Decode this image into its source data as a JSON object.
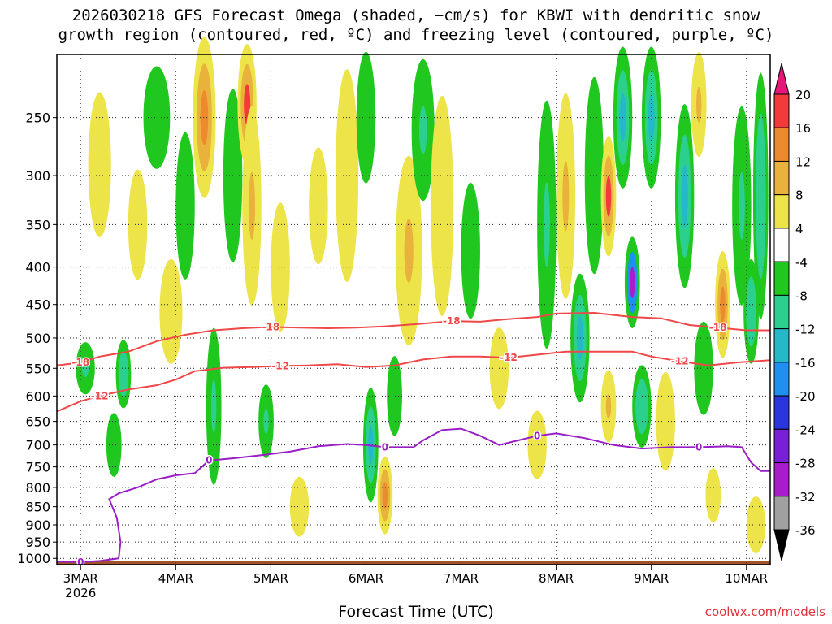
{
  "chart_data": {
    "type": "heatmap",
    "title_line1": "2026030218 GFS Forecast Omega (shaded, −cm/s) for KBWI with dendritic snow",
    "title_line2": "growth region (contoured, red, ºC) and freezing level (contoured, purple, ºC)",
    "xlabel": "Forecast Time (UTC)",
    "ylabel": "",
    "y_scale": "pressure (log), inverted",
    "ylim": [
      1020,
      205
    ],
    "y_ticks": [
      250,
      300,
      350,
      400,
      450,
      500,
      550,
      600,
      650,
      700,
      750,
      800,
      850,
      900,
      950,
      1000
    ],
    "x_ticks": [
      {
        "label": "3MAR",
        "day": 3
      },
      {
        "label": "4MAR",
        "day": 4
      },
      {
        "label": "5MAR",
        "day": 5
      },
      {
        "label": "6MAR",
        "day": 6
      },
      {
        "label": "7MAR",
        "day": 7
      },
      {
        "label": "8MAR",
        "day": 8
      },
      {
        "label": "9MAR",
        "day": 9
      },
      {
        "label": "10MAR",
        "day": 10
      }
    ],
    "x_year_label": "2026",
    "xlim_day": [
      2.75,
      10.25
    ],
    "grid": true,
    "colorbar": {
      "levels": [
        20,
        16,
        12,
        8,
        4,
        -4,
        -8,
        -12,
        -16,
        -20,
        -24,
        -28,
        -32,
        -36
      ],
      "colors": [
        "#e8157a",
        "#f23a3a",
        "#ee8a2e",
        "#e9b23c",
        "#ede44a",
        "#ffffff",
        "#1fc71f",
        "#2bd08e",
        "#24b8c8",
        "#1f8ff0",
        "#2a35e0",
        "#7a1fd8",
        "#a91cc9",
        "#a0a0a0",
        "#000000"
      ]
    },
    "dendritic_contours": [
      {
        "label": "-18",
        "points": [
          [
            2.75,
            545
          ],
          [
            3.0,
            540
          ],
          [
            3.2,
            530
          ],
          [
            3.5,
            522
          ],
          [
            3.8,
            505
          ],
          [
            4.1,
            495
          ],
          [
            4.4,
            488
          ],
          [
            4.7,
            485
          ],
          [
            5.0,
            483
          ],
          [
            5.3,
            484
          ],
          [
            5.6,
            485
          ],
          [
            5.9,
            484
          ],
          [
            6.2,
            482
          ],
          [
            6.4,
            480
          ],
          [
            6.6,
            478
          ],
          [
            6.9,
            474
          ],
          [
            7.2,
            475
          ],
          [
            7.5,
            471
          ],
          [
            7.8,
            468
          ],
          [
            8.0,
            463
          ],
          [
            8.4,
            462
          ],
          [
            8.8,
            468
          ],
          [
            9.1,
            470
          ],
          [
            9.4,
            480
          ],
          [
            9.7,
            484
          ],
          [
            10.0,
            488
          ],
          [
            10.25,
            488
          ]
        ]
      },
      {
        "label": "-12",
        "points": [
          [
            2.75,
            630
          ],
          [
            3.0,
            610
          ],
          [
            3.2,
            600
          ],
          [
            3.5,
            588
          ],
          [
            3.8,
            580
          ],
          [
            4.0,
            570
          ],
          [
            4.2,
            555
          ],
          [
            4.5,
            549
          ],
          [
            4.8,
            548
          ],
          [
            5.1,
            546
          ],
          [
            5.4,
            545
          ],
          [
            5.7,
            543
          ],
          [
            6.0,
            548
          ],
          [
            6.3,
            545
          ],
          [
            6.6,
            535
          ],
          [
            6.9,
            530
          ],
          [
            7.2,
            530
          ],
          [
            7.5,
            532
          ],
          [
            7.8,
            527
          ],
          [
            8.1,
            522
          ],
          [
            8.4,
            522
          ],
          [
            8.8,
            522
          ],
          [
            9.0,
            530
          ],
          [
            9.3,
            538
          ],
          [
            9.6,
            545
          ],
          [
            9.9,
            540
          ],
          [
            10.25,
            536
          ]
        ]
      }
    ],
    "freezing_contour": {
      "label": "0",
      "points": [
        [
          2.75,
          1010
        ],
        [
          3.0,
          1012
        ],
        [
          3.2,
          1008
        ],
        [
          3.4,
          1000
        ],
        [
          3.42,
          950
        ],
        [
          3.38,
          880
        ],
        [
          3.3,
          830
        ],
        [
          3.4,
          815
        ],
        [
          3.6,
          800
        ],
        [
          3.8,
          780
        ],
        [
          4.0,
          770
        ],
        [
          4.2,
          765
        ],
        [
          4.35,
          735
        ],
        [
          4.6,
          730
        ],
        [
          4.9,
          723
        ],
        [
          5.2,
          715
        ],
        [
          5.5,
          703
        ],
        [
          5.8,
          698
        ],
        [
          6.0,
          700
        ],
        [
          6.2,
          705
        ],
        [
          6.5,
          705
        ],
        [
          6.6,
          690
        ],
        [
          6.8,
          668
        ],
        [
          7.0,
          665
        ],
        [
          7.2,
          680
        ],
        [
          7.4,
          700
        ],
        [
          7.6,
          690
        ],
        [
          7.8,
          680
        ],
        [
          8.0,
          675
        ],
        [
          8.3,
          685
        ],
        [
          8.6,
          700
        ],
        [
          8.9,
          708
        ],
        [
          9.2,
          705
        ],
        [
          9.5,
          705
        ],
        [
          9.8,
          703
        ],
        [
          9.95,
          705
        ],
        [
          10.05,
          740
        ],
        [
          10.15,
          760
        ],
        [
          10.25,
          760
        ]
      ]
    },
    "omega_regions": [
      {
        "t": 3.05,
        "p": 550,
        "w": 0.1,
        "h": 90,
        "v": -9
      },
      {
        "t": 3.2,
        "p": 290,
        "w": 0.12,
        "h": 130,
        "v": 5
      },
      {
        "t": 3.35,
        "p": 700,
        "w": 0.08,
        "h": 140,
        "v": -8
      },
      {
        "t": 3.45,
        "p": 560,
        "w": 0.08,
        "h": 120,
        "v": -12
      },
      {
        "t": 3.6,
        "p": 350,
        "w": 0.1,
        "h": 120,
        "v": 5
      },
      {
        "t": 3.8,
        "p": 250,
        "w": 0.14,
        "h": 80,
        "v": -7
      },
      {
        "t": 3.95,
        "p": 460,
        "w": 0.12,
        "h": 150,
        "v": 5
      },
      {
        "t": 4.1,
        "p": 330,
        "w": 0.1,
        "h": 150,
        "v": -8
      },
      {
        "t": 4.3,
        "p": 250,
        "w": 0.12,
        "h": 180,
        "v": 14
      },
      {
        "t": 4.4,
        "p": 620,
        "w": 0.08,
        "h": 300,
        "v": -10
      },
      {
        "t": 4.6,
        "p": 300,
        "w": 0.1,
        "h": 160,
        "v": -8
      },
      {
        "t": 4.75,
        "p": 240,
        "w": 0.1,
        "h": 120,
        "v": 18
      },
      {
        "t": 4.8,
        "p": 330,
        "w": 0.1,
        "h": 200,
        "v": 9
      },
      {
        "t": 4.95,
        "p": 650,
        "w": 0.08,
        "h": 150,
        "v": -10
      },
      {
        "t": 5.1,
        "p": 400,
        "w": 0.1,
        "h": 160,
        "v": 5
      },
      {
        "t": 5.3,
        "p": 850,
        "w": 0.1,
        "h": 160,
        "v": 6
      },
      {
        "t": 5.5,
        "p": 330,
        "w": 0.1,
        "h": 120,
        "v": 5
      },
      {
        "t": 5.8,
        "p": 300,
        "w": 0.12,
        "h": 200,
        "v": 5
      },
      {
        "t": 6.0,
        "p": 250,
        "w": 0.1,
        "h": 120,
        "v": -8
      },
      {
        "t": 6.05,
        "p": 700,
        "w": 0.08,
        "h": 250,
        "v": -14
      },
      {
        "t": 6.2,
        "p": 820,
        "w": 0.08,
        "h": 200,
        "v": 14
      },
      {
        "t": 6.3,
        "p": 600,
        "w": 0.08,
        "h": 150,
        "v": -8
      },
      {
        "t": 6.45,
        "p": 380,
        "w": 0.14,
        "h": 220,
        "v": 9
      },
      {
        "t": 6.6,
        "p": 260,
        "w": 0.12,
        "h": 120,
        "v": -9
      },
      {
        "t": 6.8,
        "p": 330,
        "w": 0.12,
        "h": 220,
        "v": 5
      },
      {
        "t": 7.1,
        "p": 380,
        "w": 0.1,
        "h": 160,
        "v": -7
      },
      {
        "t": 7.4,
        "p": 550,
        "w": 0.1,
        "h": 140,
        "v": 5
      },
      {
        "t": 7.8,
        "p": 700,
        "w": 0.1,
        "h": 150,
        "v": 5
      },
      {
        "t": 7.9,
        "p": 350,
        "w": 0.1,
        "h": 260,
        "v": -9
      },
      {
        "t": 8.1,
        "p": 320,
        "w": 0.1,
        "h": 200,
        "v": 10
      },
      {
        "t": 8.25,
        "p": 500,
        "w": 0.1,
        "h": 200,
        "v": -14
      },
      {
        "t": 8.4,
        "p": 300,
        "w": 0.1,
        "h": 180,
        "v": -8
      },
      {
        "t": 8.55,
        "p": 320,
        "w": 0.08,
        "h": 120,
        "v": 18
      },
      {
        "t": 8.55,
        "p": 620,
        "w": 0.08,
        "h": 140,
        "v": 10
      },
      {
        "t": 8.7,
        "p": 250,
        "w": 0.1,
        "h": 140,
        "v": -15
      },
      {
        "t": 8.8,
        "p": 420,
        "w": 0.08,
        "h": 120,
        "v": -29
      },
      {
        "t": 8.9,
        "p": 620,
        "w": 0.1,
        "h": 160,
        "v": -12
      },
      {
        "t": 9.0,
        "p": 250,
        "w": 0.1,
        "h": 140,
        "v": -15
      },
      {
        "t": 9.15,
        "p": 650,
        "w": 0.1,
        "h": 200,
        "v": 5
      },
      {
        "t": 9.35,
        "p": 320,
        "w": 0.1,
        "h": 180,
        "v": -14
      },
      {
        "t": 9.5,
        "p": 240,
        "w": 0.08,
        "h": 90,
        "v": 10
      },
      {
        "t": 9.55,
        "p": 550,
        "w": 0.1,
        "h": 160,
        "v": -8
      },
      {
        "t": 9.65,
        "p": 820,
        "w": 0.08,
        "h": 140,
        "v": 6
      },
      {
        "t": 9.75,
        "p": 450,
        "w": 0.08,
        "h": 150,
        "v": 12
      },
      {
        "t": 9.95,
        "p": 330,
        "w": 0.1,
        "h": 200,
        "v": -10
      },
      {
        "t": 10.05,
        "p": 460,
        "w": 0.08,
        "h": 150,
        "v": -12
      },
      {
        "t": 10.1,
        "p": 900,
        "w": 0.1,
        "h": 160,
        "v": 5
      },
      {
        "t": 10.15,
        "p": 320,
        "w": 0.08,
        "h": 250,
        "v": -12
      }
    ],
    "ground": {
      "color": "#a0522d",
      "top_p": 1008
    }
  },
  "watermark": "coolwx.com/models"
}
